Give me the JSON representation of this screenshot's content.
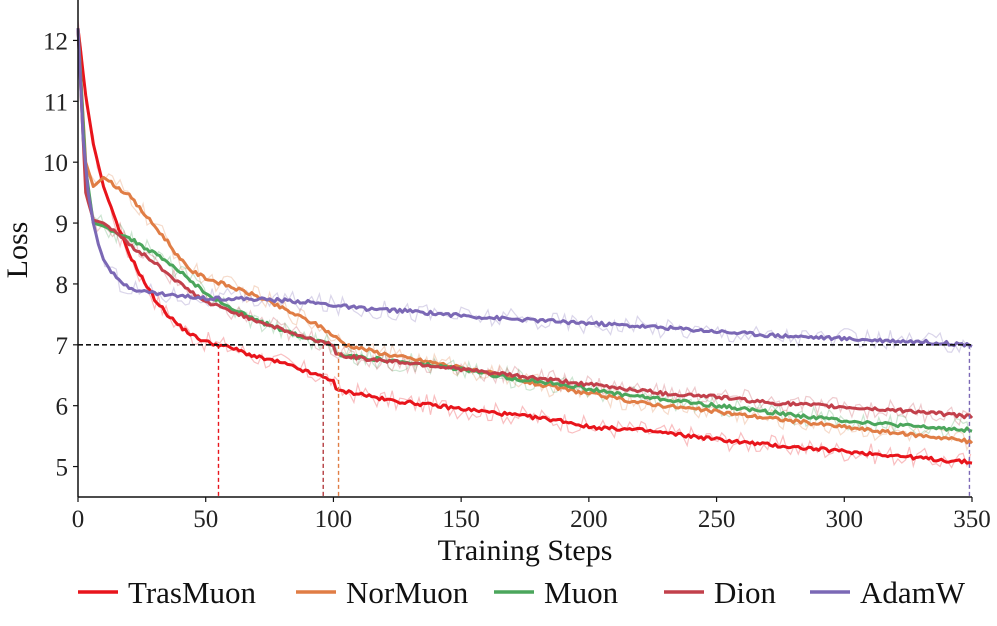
{
  "chart_data": {
    "type": "line",
    "title": "",
    "xlabel": "Training Steps",
    "ylabel": "Loss",
    "xlim": [
      0,
      350
    ],
    "ylim": [
      4.5,
      12.5
    ],
    "xticks": [
      0,
      50,
      100,
      150,
      200,
      250,
      300,
      350
    ],
    "yticks": [
      5,
      6,
      7,
      8,
      9,
      10,
      11,
      12
    ],
    "reference_line": {
      "y": 7,
      "style": "dashed",
      "color": "#111111"
    },
    "legend_position": "bottom",
    "series": [
      {
        "name": "TrasMuon",
        "color": "#e8141b",
        "x": [
          0,
          3,
          6,
          10,
          15,
          20,
          25,
          30,
          35,
          40,
          45,
          50,
          55,
          60,
          70,
          80,
          90,
          100,
          101,
          110,
          120,
          130,
          150,
          170,
          190,
          200,
          220,
          240,
          260,
          280,
          300,
          320,
          340,
          350
        ],
        "y": [
          12.2,
          11.1,
          10.3,
          9.6,
          9.0,
          8.5,
          8.1,
          7.75,
          7.5,
          7.3,
          7.15,
          7.05,
          7.0,
          6.95,
          6.8,
          6.7,
          6.55,
          6.42,
          6.25,
          6.2,
          6.1,
          6.05,
          5.95,
          5.85,
          5.75,
          5.65,
          5.6,
          5.5,
          5.4,
          5.32,
          5.25,
          5.18,
          5.1,
          5.07
        ],
        "threshold_step": 55
      },
      {
        "name": "NorMuon",
        "color": "#e07d45",
        "x": [
          0,
          3,
          6,
          10,
          15,
          20,
          25,
          30,
          35,
          40,
          45,
          50,
          60,
          70,
          80,
          90,
          95,
          100,
          105,
          120,
          140,
          160,
          180,
          200,
          220,
          240,
          260,
          280,
          300,
          320,
          340,
          350
        ],
        "y": [
          12.2,
          10.0,
          9.6,
          9.75,
          9.6,
          9.45,
          9.2,
          8.95,
          8.7,
          8.4,
          8.2,
          8.1,
          7.95,
          7.8,
          7.6,
          7.4,
          7.3,
          7.15,
          7.0,
          6.85,
          6.7,
          6.55,
          6.35,
          6.2,
          6.05,
          5.95,
          5.85,
          5.75,
          5.65,
          5.55,
          5.47,
          5.4
        ],
        "threshold_step": 102
      },
      {
        "name": "Muon",
        "color": "#4ba65c",
        "x": [
          0,
          3,
          6,
          10,
          15,
          20,
          30,
          40,
          50,
          60,
          70,
          80,
          90,
          96,
          100,
          101,
          110,
          130,
          150,
          170,
          190,
          210,
          230,
          250,
          270,
          290,
          310,
          330,
          350
        ],
        "y": [
          12.2,
          9.9,
          9.0,
          8.95,
          8.85,
          8.75,
          8.5,
          8.2,
          7.85,
          7.6,
          7.4,
          7.25,
          7.1,
          7.05,
          7.0,
          6.85,
          6.8,
          6.7,
          6.6,
          6.45,
          6.35,
          6.2,
          6.1,
          6.0,
          5.9,
          5.8,
          5.72,
          5.65,
          5.6
        ],
        "threshold_step": 96
      },
      {
        "name": "Dion",
        "color": "#c2404b",
        "x": [
          0,
          3,
          6,
          10,
          15,
          20,
          30,
          40,
          50,
          60,
          70,
          80,
          90,
          96,
          100,
          101,
          110,
          130,
          150,
          170,
          190,
          210,
          230,
          250,
          270,
          290,
          310,
          330,
          350
        ],
        "y": [
          12.2,
          9.5,
          9.05,
          9.0,
          8.85,
          8.65,
          8.35,
          8.0,
          7.7,
          7.55,
          7.4,
          7.25,
          7.1,
          7.05,
          7.0,
          6.85,
          6.78,
          6.7,
          6.6,
          6.5,
          6.4,
          6.3,
          6.2,
          6.15,
          6.05,
          6.0,
          5.95,
          5.9,
          5.82
        ],
        "threshold_step": 96
      },
      {
        "name": "AdamW",
        "color": "#7b68b5",
        "x": [
          0,
          2,
          4,
          6,
          8,
          10,
          13,
          16,
          20,
          25,
          30,
          40,
          50,
          60,
          70,
          80,
          90,
          100,
          110,
          130,
          150,
          170,
          190,
          210,
          230,
          250,
          270,
          290,
          310,
          330,
          350
        ],
        "y": [
          12.2,
          10.4,
          9.5,
          9.0,
          8.65,
          8.4,
          8.2,
          8.05,
          7.95,
          7.88,
          7.85,
          7.8,
          7.77,
          7.76,
          7.75,
          7.73,
          7.7,
          7.65,
          7.6,
          7.55,
          7.48,
          7.42,
          7.38,
          7.33,
          7.28,
          7.22,
          7.16,
          7.12,
          7.08,
          7.05,
          7.0
        ],
        "threshold_step": 349
      }
    ]
  }
}
